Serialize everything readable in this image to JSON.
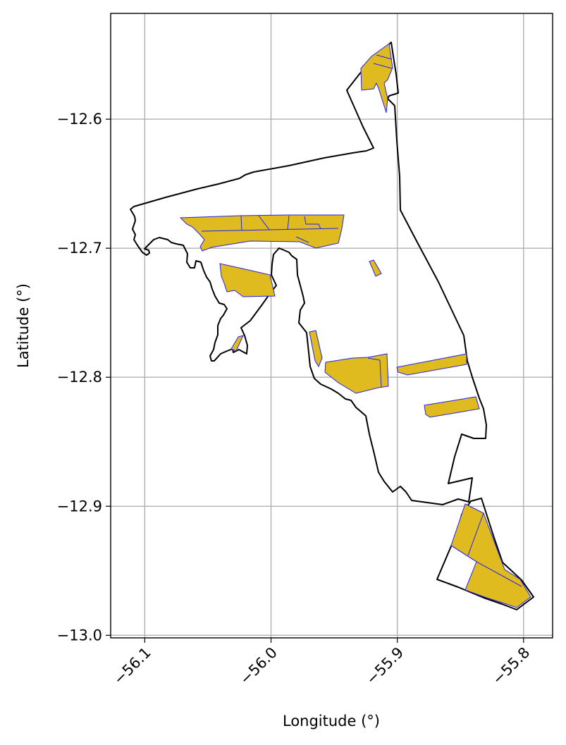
{
  "map": {
    "xlabel": "Longitude (°)",
    "ylabel": "Latitude (°)",
    "x_ticks": [
      {
        "value": -56.1,
        "label": "−56.1"
      },
      {
        "value": -56.0,
        "label": "−56.0"
      },
      {
        "value": -55.9,
        "label": "−55.9"
      },
      {
        "value": -55.8,
        "label": "−55.8"
      }
    ],
    "y_ticks": [
      {
        "value": -12.6,
        "label": "−12.6"
      },
      {
        "value": -12.7,
        "label": "−12.7"
      },
      {
        "value": -12.8,
        "label": "−12.8"
      },
      {
        "value": -12.9,
        "label": "−12.9"
      },
      {
        "value": -13.0,
        "label": "−13.0"
      }
    ],
    "xlim": [
      -56.127,
      -55.777
    ],
    "ylim": [
      -13.002,
      -12.518
    ],
    "grid": true,
    "colors": {
      "boundary": "#000000",
      "parcel_fill": "#e0bb1f",
      "parcel_edge": "#2222ee",
      "grid": "#b0b0b0"
    }
  }
}
